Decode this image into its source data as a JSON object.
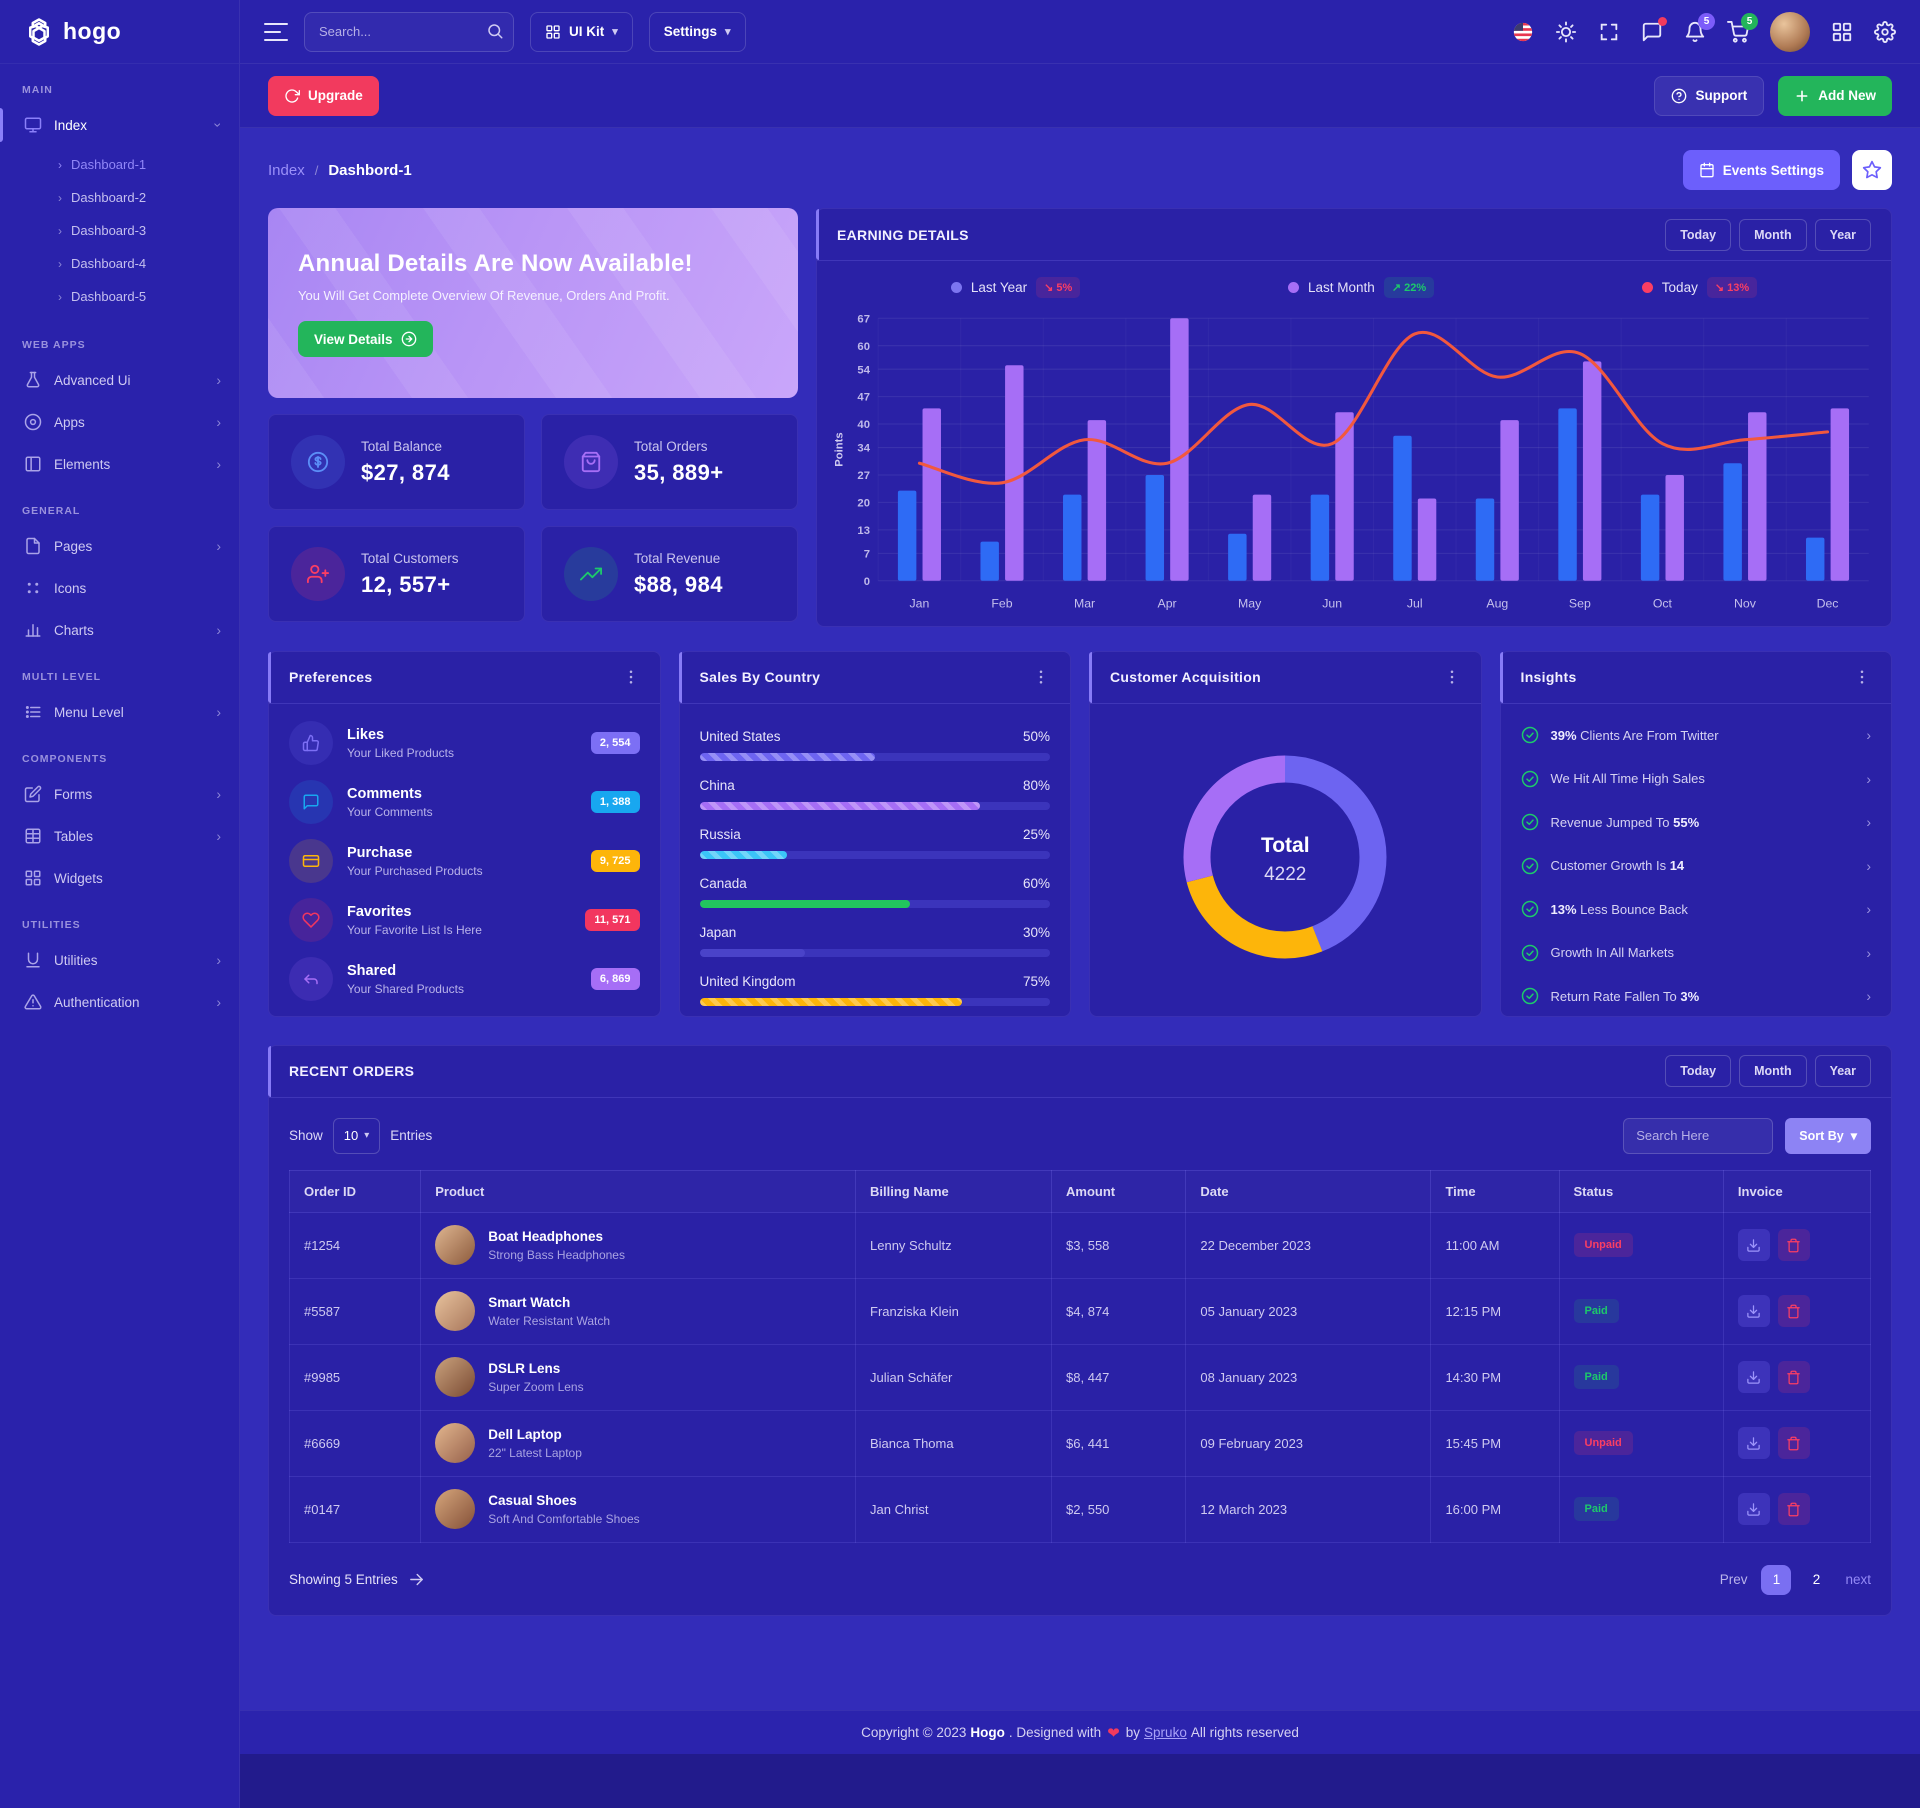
{
  "navbar": {
    "search_placeholder": "Search...",
    "ui_kit_label": "UI Kit",
    "settings_label": "Settings",
    "bell_badge": "5",
    "cart_badge": "5"
  },
  "sidebar": {
    "brand": "hogo",
    "sections": [
      {
        "label": "MAIN",
        "items": [
          {
            "label": "Index",
            "icon": "monitor",
            "chevron": "down",
            "active": true,
            "children": [
              "Dashboard-1",
              "Dashboard-2",
              "Dashboard-3",
              "Dashboard-4",
              "Dashboard-5"
            ],
            "active_child": 0
          }
        ]
      },
      {
        "label": "WEB APPS",
        "items": [
          {
            "label": "Advanced Ui",
            "icon": "flask",
            "chevron": "right"
          },
          {
            "label": "Apps",
            "icon": "aperture",
            "chevron": "right"
          },
          {
            "label": "Elements",
            "icon": "layout",
            "chevron": "right"
          }
        ]
      },
      {
        "label": "GENERAL",
        "items": [
          {
            "label": "Pages",
            "icon": "file",
            "chevron": "right"
          },
          {
            "label": "Icons",
            "icon": "dots",
            "chevron": "none"
          },
          {
            "label": "Charts",
            "icon": "chart",
            "chevron": "right"
          }
        ]
      },
      {
        "label": "MULTI LEVEL",
        "items": [
          {
            "label": "Menu Level",
            "icon": "list",
            "chevron": "right"
          }
        ]
      },
      {
        "label": "COMPONENTS",
        "items": [
          {
            "label": "Forms",
            "icon": "edit",
            "chevron": "right"
          },
          {
            "label": "Tables",
            "icon": "table",
            "chevron": "right"
          },
          {
            "label": "Widgets",
            "icon": "grid",
            "chevron": "none"
          }
        ]
      },
      {
        "label": "UTILITIES",
        "items": [
          {
            "label": "Utilities",
            "icon": "ushape",
            "chevron": "right"
          },
          {
            "label": "Authentication",
            "icon": "alert",
            "chevron": "right"
          }
        ]
      }
    ]
  },
  "header_actions": {
    "upgrade_label": "Upgrade",
    "support_label": "Support",
    "add_new_label": "Add New"
  },
  "breadcrumb": {
    "parent": "Index",
    "separator": "/",
    "current": "Dashbord-1",
    "events_settings_label": "Events Settings"
  },
  "banner": {
    "title": "Annual Details Are Now Available!",
    "subtitle": "You Will Get Complete Overview Of Revenue, Orders And Profit.",
    "button_label": "View Details"
  },
  "stats": [
    {
      "label": "Total Balance",
      "value": "$27, 874",
      "icon": "dollar",
      "color": "#5b8ef7"
    },
    {
      "label": "Total Orders",
      "value": "35, 889+",
      "icon": "bag",
      "color": "#a66ef6"
    },
    {
      "label": "Total Customers",
      "value": "12, 557+",
      "icon": "user-plus",
      "color": "#fb3e63"
    },
    {
      "label": "Total Revenue",
      "value": "$88, 984",
      "icon": "trend-up",
      "color": "#1dc96b"
    }
  ],
  "earning": {
    "title": "EARNING DETAILS",
    "range_buttons": [
      "Today",
      "Month",
      "Year"
    ],
    "legend": [
      {
        "label": "Last Year",
        "dot_color": "#7c75f0",
        "badge": "5%",
        "dir": "down",
        "badge_color": "#fb3e63"
      },
      {
        "label": "Last Month",
        "dot_color": "#a66ef6",
        "badge": "22%",
        "dir": "up",
        "badge_color": "#1dc96b"
      },
      {
        "label": "Today",
        "dot_color": "#fb3e63",
        "badge": "13%",
        "dir": "down",
        "badge_color": "#fb3e63"
      }
    ]
  },
  "chart_data": [
    {
      "id": "earning-details",
      "type": "bar",
      "title": "EARNING DETAILS",
      "xlabel": "",
      "ylabel": "Points",
      "categories": [
        "Jan",
        "Feb",
        "Mar",
        "Apr",
        "May",
        "Jun",
        "Jul",
        "Aug",
        "Sep",
        "Oct",
        "Nov",
        "Dec"
      ],
      "yticks": [
        0,
        7,
        13,
        20,
        27,
        34,
        40,
        47,
        54,
        60,
        67
      ],
      "ylim": [
        0,
        67
      ],
      "grid": true,
      "legend_position": "top",
      "series": [
        {
          "name": "Last Year",
          "render": "bar",
          "color": "#2e6bf5",
          "values": [
            23,
            10,
            22,
            27,
            12,
            22,
            37,
            21,
            44,
            22,
            30,
            11
          ]
        },
        {
          "name": "Last Month",
          "render": "bar",
          "color": "#a66ef6",
          "values": [
            44,
            55,
            41,
            67,
            22,
            43,
            21,
            41,
            56,
            27,
            43,
            44
          ]
        },
        {
          "name": "Today",
          "render": "line",
          "color": "#f2583e",
          "values": [
            30,
            25,
            36,
            30,
            45,
            35,
            63,
            52,
            58,
            35,
            36,
            38
          ]
        }
      ]
    },
    {
      "id": "customer-acquisition",
      "type": "pie",
      "title": "Customer Acquisition",
      "center_label": "Total",
      "center_value": "4222",
      "segments": [
        {
          "color": "#6d64f1",
          "pct": 44
        },
        {
          "color": "#fdb50a",
          "pct": 27
        },
        {
          "color": "#a66ef6",
          "pct": 29
        }
      ]
    },
    {
      "id": "sales-by-country",
      "type": "bar",
      "title": "Sales By Country",
      "categories": [
        "United States",
        "China",
        "Russia",
        "Canada",
        "Japan",
        "United Kingdom"
      ],
      "values": [
        50,
        80,
        25,
        60,
        30,
        75
      ]
    }
  ],
  "preferences": {
    "title": "Preferences",
    "items": [
      {
        "name": "Likes",
        "sub": "Your Liked Products",
        "badge": "2, 554",
        "color": "#7c6ff5",
        "icon": "thumb"
      },
      {
        "name": "Comments",
        "sub": "Your Comments",
        "badge": "1, 388",
        "color": "#18a7f0",
        "icon": "chat"
      },
      {
        "name": "Purchase",
        "sub": "Your Purchased Products",
        "badge": "9, 725",
        "color": "#fdb50a",
        "icon": "wallet"
      },
      {
        "name": "Favorites",
        "sub": "Your Favorite List Is Here",
        "badge": "11, 571",
        "color": "#f2365f",
        "icon": "heart"
      },
      {
        "name": "Shared",
        "sub": "Your Shared Products",
        "badge": "6, 869",
        "color": "#a66ef6",
        "icon": "reply"
      }
    ]
  },
  "sales_by_country": {
    "title": "Sales By Country",
    "items": [
      {
        "country": "United States",
        "pct": 50,
        "color": "#6d64f1",
        "striped": true
      },
      {
        "country": "China",
        "pct": 80,
        "color": "#a66ef6",
        "striped": true
      },
      {
        "country": "Russia",
        "pct": 25,
        "color": "#3bc5f8",
        "striped": true
      },
      {
        "country": "Canada",
        "pct": 60,
        "color": "#22c55e",
        "striped": false
      },
      {
        "country": "Japan",
        "pct": 30,
        "color": "#4a43c9",
        "striped": false
      },
      {
        "country": "United Kingdom",
        "pct": 75,
        "color": "#fdb50a",
        "striped": true
      }
    ]
  },
  "customer_acquisition": {
    "title": "Customer Acquisition",
    "total_label": "Total",
    "total_value": "4222"
  },
  "insights": {
    "title": "Insights",
    "items": [
      [
        [
          "b",
          "39%"
        ],
        [
          "t",
          " Clients Are From Twitter"
        ]
      ],
      [
        [
          "t",
          "We Hit All Time High Sales"
        ]
      ],
      [
        [
          "t",
          "Revenue Jumped To "
        ],
        [
          "b",
          "55%"
        ]
      ],
      [
        [
          "t",
          "Customer Growth Is "
        ],
        [
          "b",
          "14"
        ]
      ],
      [
        [
          "b",
          "13%"
        ],
        [
          "t",
          " Less Bounce Back"
        ]
      ],
      [
        [
          "t",
          "Growth In All Markets"
        ]
      ],
      [
        [
          "t",
          "Return Rate Fallen To "
        ],
        [
          "b",
          "3%"
        ]
      ]
    ]
  },
  "orders": {
    "title": "RECENT ORDERS",
    "range_buttons": [
      "Today",
      "Month",
      "Year"
    ],
    "show_label": "Show",
    "show_value": "10",
    "entries_label": "Entries",
    "search_placeholder": "Search Here",
    "sort_label": "Sort By",
    "columns": [
      "Order ID",
      "Product",
      "Billing Name",
      "Amount",
      "Date",
      "Time",
      "Status",
      "Invoice"
    ],
    "rows": [
      {
        "id": "#1254",
        "product": "Boat Headphones",
        "product_sub": "Strong Bass Headphones",
        "billing": "Lenny Schultz",
        "amount": "$3, 558",
        "date": "22 December 2023",
        "time": "11:00 AM",
        "status": "Unpaid"
      },
      {
        "id": "#5587",
        "product": "Smart Watch",
        "product_sub": "Water Resistant Watch",
        "billing": "Franziska Klein",
        "amount": "$4, 874",
        "date": "05 January 2023",
        "time": "12:15 PM",
        "status": "Paid"
      },
      {
        "id": "#9985",
        "product": "DSLR Lens",
        "product_sub": "Super Zoom Lens",
        "billing": "Julian Schäfer",
        "amount": "$8, 447",
        "date": "08 January 2023",
        "time": "14:30 PM",
        "status": "Paid"
      },
      {
        "id": "#6669",
        "product": "Dell Laptop",
        "product_sub": "22\" Latest Laptop",
        "billing": "Bianca Thoma",
        "amount": "$6, 441",
        "date": "09 February 2023",
        "time": "15:45 PM",
        "status": "Unpaid"
      },
      {
        "id": "#0147",
        "product": "Casual Shoes",
        "product_sub": "Soft And Comfortable Shoes",
        "billing": "Jan Christ",
        "amount": "$2, 550",
        "date": "12 March 2023",
        "time": "16:00 PM",
        "status": "Paid"
      }
    ],
    "footer_text": "Showing 5 Entries",
    "pagination": {
      "prev": "Prev",
      "pages": [
        "1",
        "2"
      ],
      "active": "1",
      "next": "next"
    }
  },
  "footer": {
    "prefix": "Copyright © 2023 ",
    "brand": "Hogo",
    "middle": ". Designed with",
    "by": "by ",
    "link": "Spruko",
    "suffix": " All rights reserved"
  }
}
